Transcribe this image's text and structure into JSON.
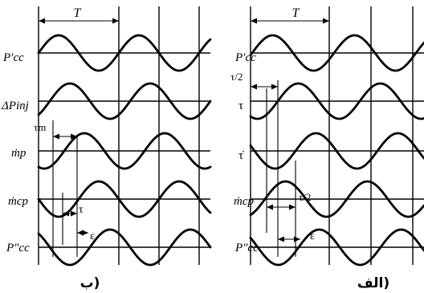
{
  "panel_b": {
    "period_label": "T",
    "signal_labels": [
      "P′cc",
      "ΔPinj",
      "ṁp",
      "ṁcp",
      "P″cc"
    ],
    "tau_m_label": "τm",
    "tau_label": "τ",
    "epsilon_label": "ε",
    "caption": "ب)"
  },
  "panel_a": {
    "period_label": "T",
    "signal_labels": [
      "P′cc",
      "τ",
      "τ̇",
      "ṁcp",
      "P″cc"
    ],
    "tau_half_top_label": "τ/2",
    "tau_half_mid_label": "τ/2",
    "epsilon_label": "ε",
    "caption": "الف)"
  }
}
